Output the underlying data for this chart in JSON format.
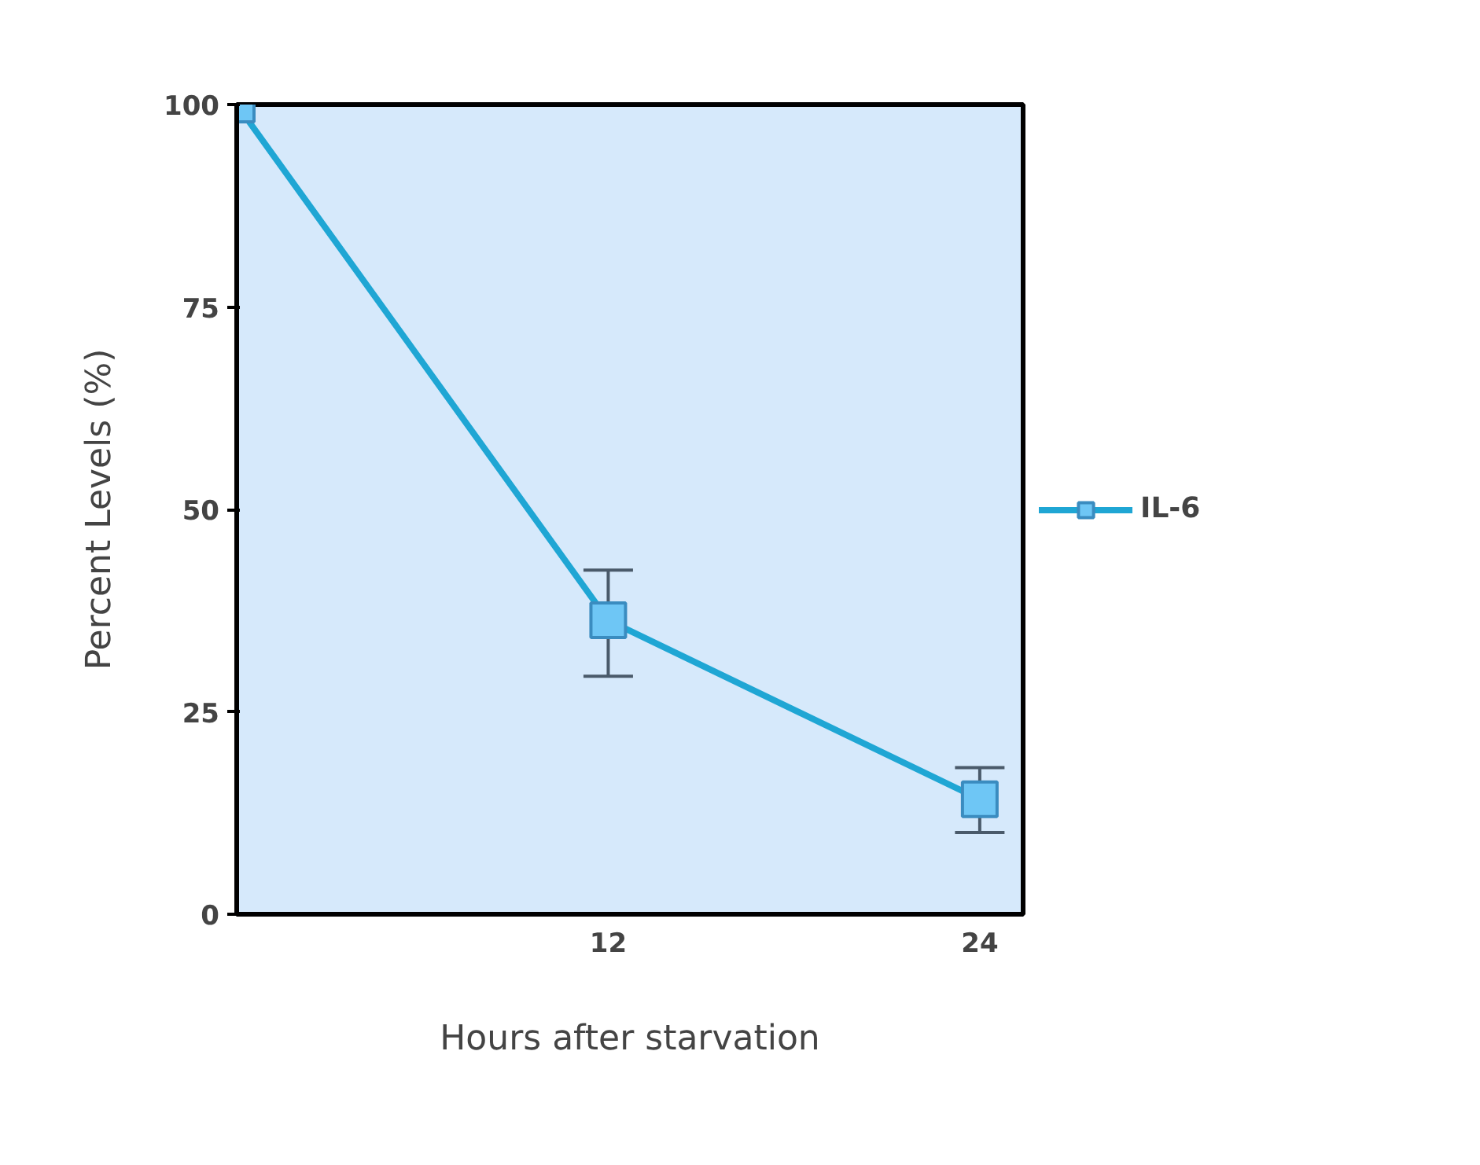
{
  "chart_data": {
    "type": "line",
    "xlabel": "Hours after starvation",
    "ylabel": "Percent Levels (%)",
    "x": [
      0,
      12,
      24
    ],
    "xlim": [
      0,
      25.4
    ],
    "xticks": [
      12,
      24
    ],
    "ylim": [
      0,
      100
    ],
    "yticks": [
      0,
      25,
      50,
      75,
      100
    ],
    "series": [
      {
        "name": "IL-6",
        "color": "#1fa6d4",
        "values": [
          100,
          36.3,
          14.2
        ],
        "errors": [
          null,
          [
            29.4,
            42.5
          ],
          [
            10.1,
            18.1
          ]
        ]
      }
    ],
    "marker": "square",
    "legend": "right",
    "grid": false
  }
}
